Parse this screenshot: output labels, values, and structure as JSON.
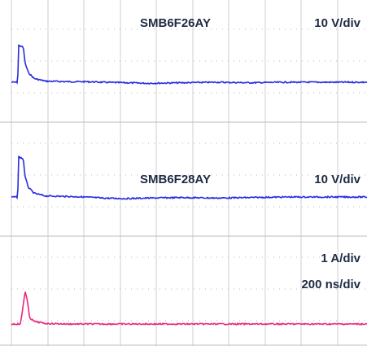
{
  "chart_data": [
    {
      "type": "line",
      "title": "SMB6F26AY",
      "scale_label": "10 V/div",
      "color": "#2b2be0",
      "baseline_div": 0,
      "x": [
        0,
        0.3,
        0.55,
        0.6,
        0.62,
        1.05,
        1.1,
        1.2,
        1.5,
        2.0,
        3.0,
        5.0,
        6.5,
        8.0,
        10.0,
        12.0,
        15.0,
        18.0,
        21.0,
        24.0,
        27.0,
        31.5
      ],
      "y": [
        0,
        0,
        0,
        1.8,
        3.5,
        3.3,
        2.8,
        1.8,
        0.9,
        0.35,
        0.1,
        0.05,
        0.05,
        0.0,
        -0.05,
        -0.1,
        -0.05,
        0.0,
        -0.05,
        0.0,
        0.0,
        0.0
      ]
    },
    {
      "type": "line",
      "title": "SMB6F28AY",
      "scale_label": "10 V/div",
      "color": "#2b2be0",
      "baseline_div": 0,
      "x": [
        0,
        0.3,
        0.55,
        0.6,
        0.62,
        1.05,
        1.1,
        1.2,
        1.5,
        2.0,
        3.0,
        5.0,
        6.5,
        8.0,
        10.0,
        12.0,
        15.0,
        18.0,
        21.0,
        24.0,
        27.0,
        31.5
      ],
      "y": [
        0,
        0,
        0,
        1.8,
        3.8,
        3.6,
        3.0,
        1.9,
        0.9,
        0.35,
        0.1,
        0.05,
        0.0,
        -0.1,
        -0.15,
        -0.1,
        -0.05,
        -0.1,
        -0.05,
        0.0,
        0.0,
        0.0
      ]
    },
    {
      "type": "line",
      "title": "",
      "scale_label": "1 A/div",
      "time_label": "200 ns/div",
      "color": "#e8287f",
      "baseline_div": 0,
      "x": [
        0,
        0.5,
        0.8,
        1.0,
        1.2,
        1.4,
        1.6,
        2.0,
        3.0,
        5.0,
        10.0,
        15.0,
        20.0,
        25.0,
        31.5
      ],
      "y": [
        0,
        0,
        0,
        1.5,
        3.1,
        2.2,
        0.6,
        0.25,
        0.05,
        0.0,
        0.0,
        0.0,
        0.0,
        0.0,
        0.0
      ]
    }
  ]
}
